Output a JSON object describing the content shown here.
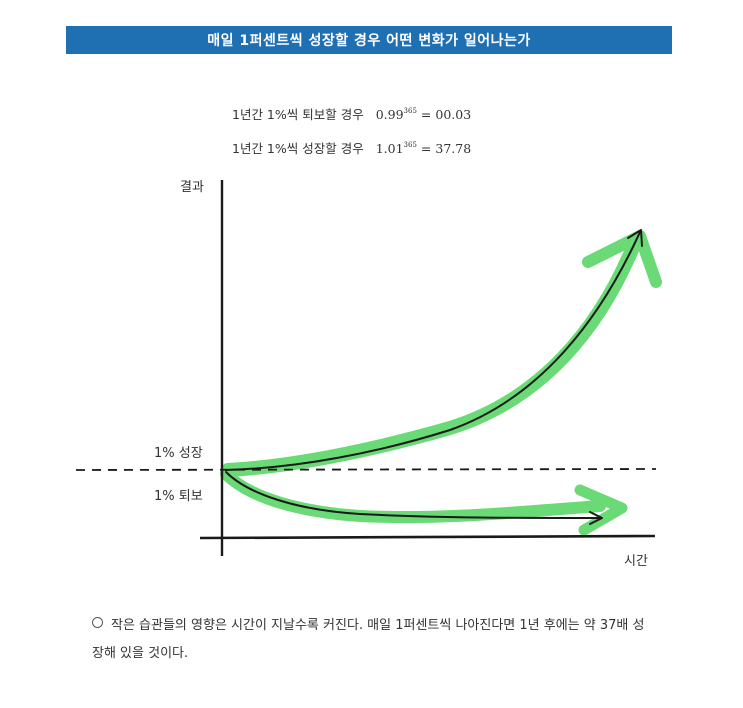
{
  "banner": {
    "title": "매일 1퍼센트씩 성장할 경우 어떤 변화가 일어나는가"
  },
  "formulas": [
    {
      "label": "1년간 1%씩 퇴보할 경우",
      "base": "0.99",
      "exponent": "365",
      "equals": "=",
      "result": "00.03"
    },
    {
      "label": "1년간 1%씩 성장할 경우",
      "base": "1.01",
      "exponent": "365",
      "equals": "=",
      "result": "37.78"
    }
  ],
  "chart": {
    "ylabel": "결과",
    "xlabel": "시간",
    "growth_label": "1% 성장",
    "decline_label": "1% 퇴보",
    "accent_color": "#4fd45e",
    "line_color": "#1a1a1a"
  },
  "caption": {
    "text": "작은 습관들의 영향은 시간이 지날수록 커진다. 매일 1퍼센트씩 나아진다면 1년 후에는 약 37배 성장해 있을 것이다."
  }
}
